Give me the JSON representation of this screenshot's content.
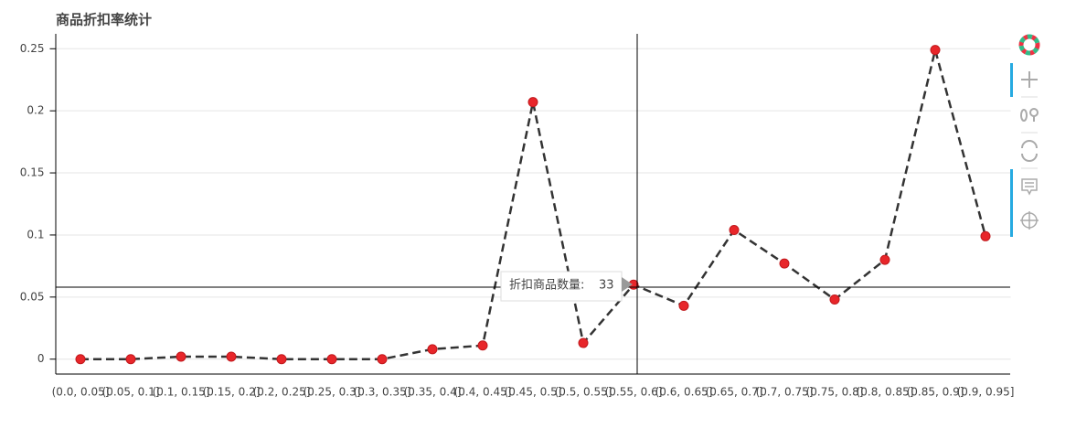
{
  "chart_data": {
    "type": "line",
    "title": "商品折扣率统计",
    "categories": [
      "(0.0, 0.05]",
      "(0.05, 0.1]",
      "(0.1, 0.15]",
      "(0.15, 0.2]",
      "(0.2, 0.25]",
      "(0.25, 0.3]",
      "(0.3, 0.35]",
      "(0.35, 0.4]",
      "(0.4, 0.45]",
      "(0.45, 0.5]",
      "(0.5, 0.55]",
      "(0.55, 0.6]",
      "(0.6, 0.65]",
      "(0.65, 0.7]",
      "(0.7, 0.75]",
      "(0.75, 0.8]",
      "(0.8, 0.85]",
      "(0.85, 0.9]",
      "(0.9, 0.95]"
    ],
    "values": [
      0.0,
      0.0,
      0.002,
      0.002,
      0.0,
      0.0,
      0.0,
      0.008,
      0.011,
      0.207,
      0.013,
      0.06,
      0.043,
      0.104,
      0.077,
      0.048,
      0.08,
      0.249,
      0.099
    ],
    "line_color": "#333333",
    "marker_color": "#e8262a",
    "ylim": [
      -0.012,
      0.262
    ],
    "yticks": [
      0,
      0.05,
      0.1,
      0.15,
      0.2,
      0.25
    ],
    "grid": true,
    "tooltip": {
      "label": "折扣商品数量:",
      "value": "33"
    }
  }
}
